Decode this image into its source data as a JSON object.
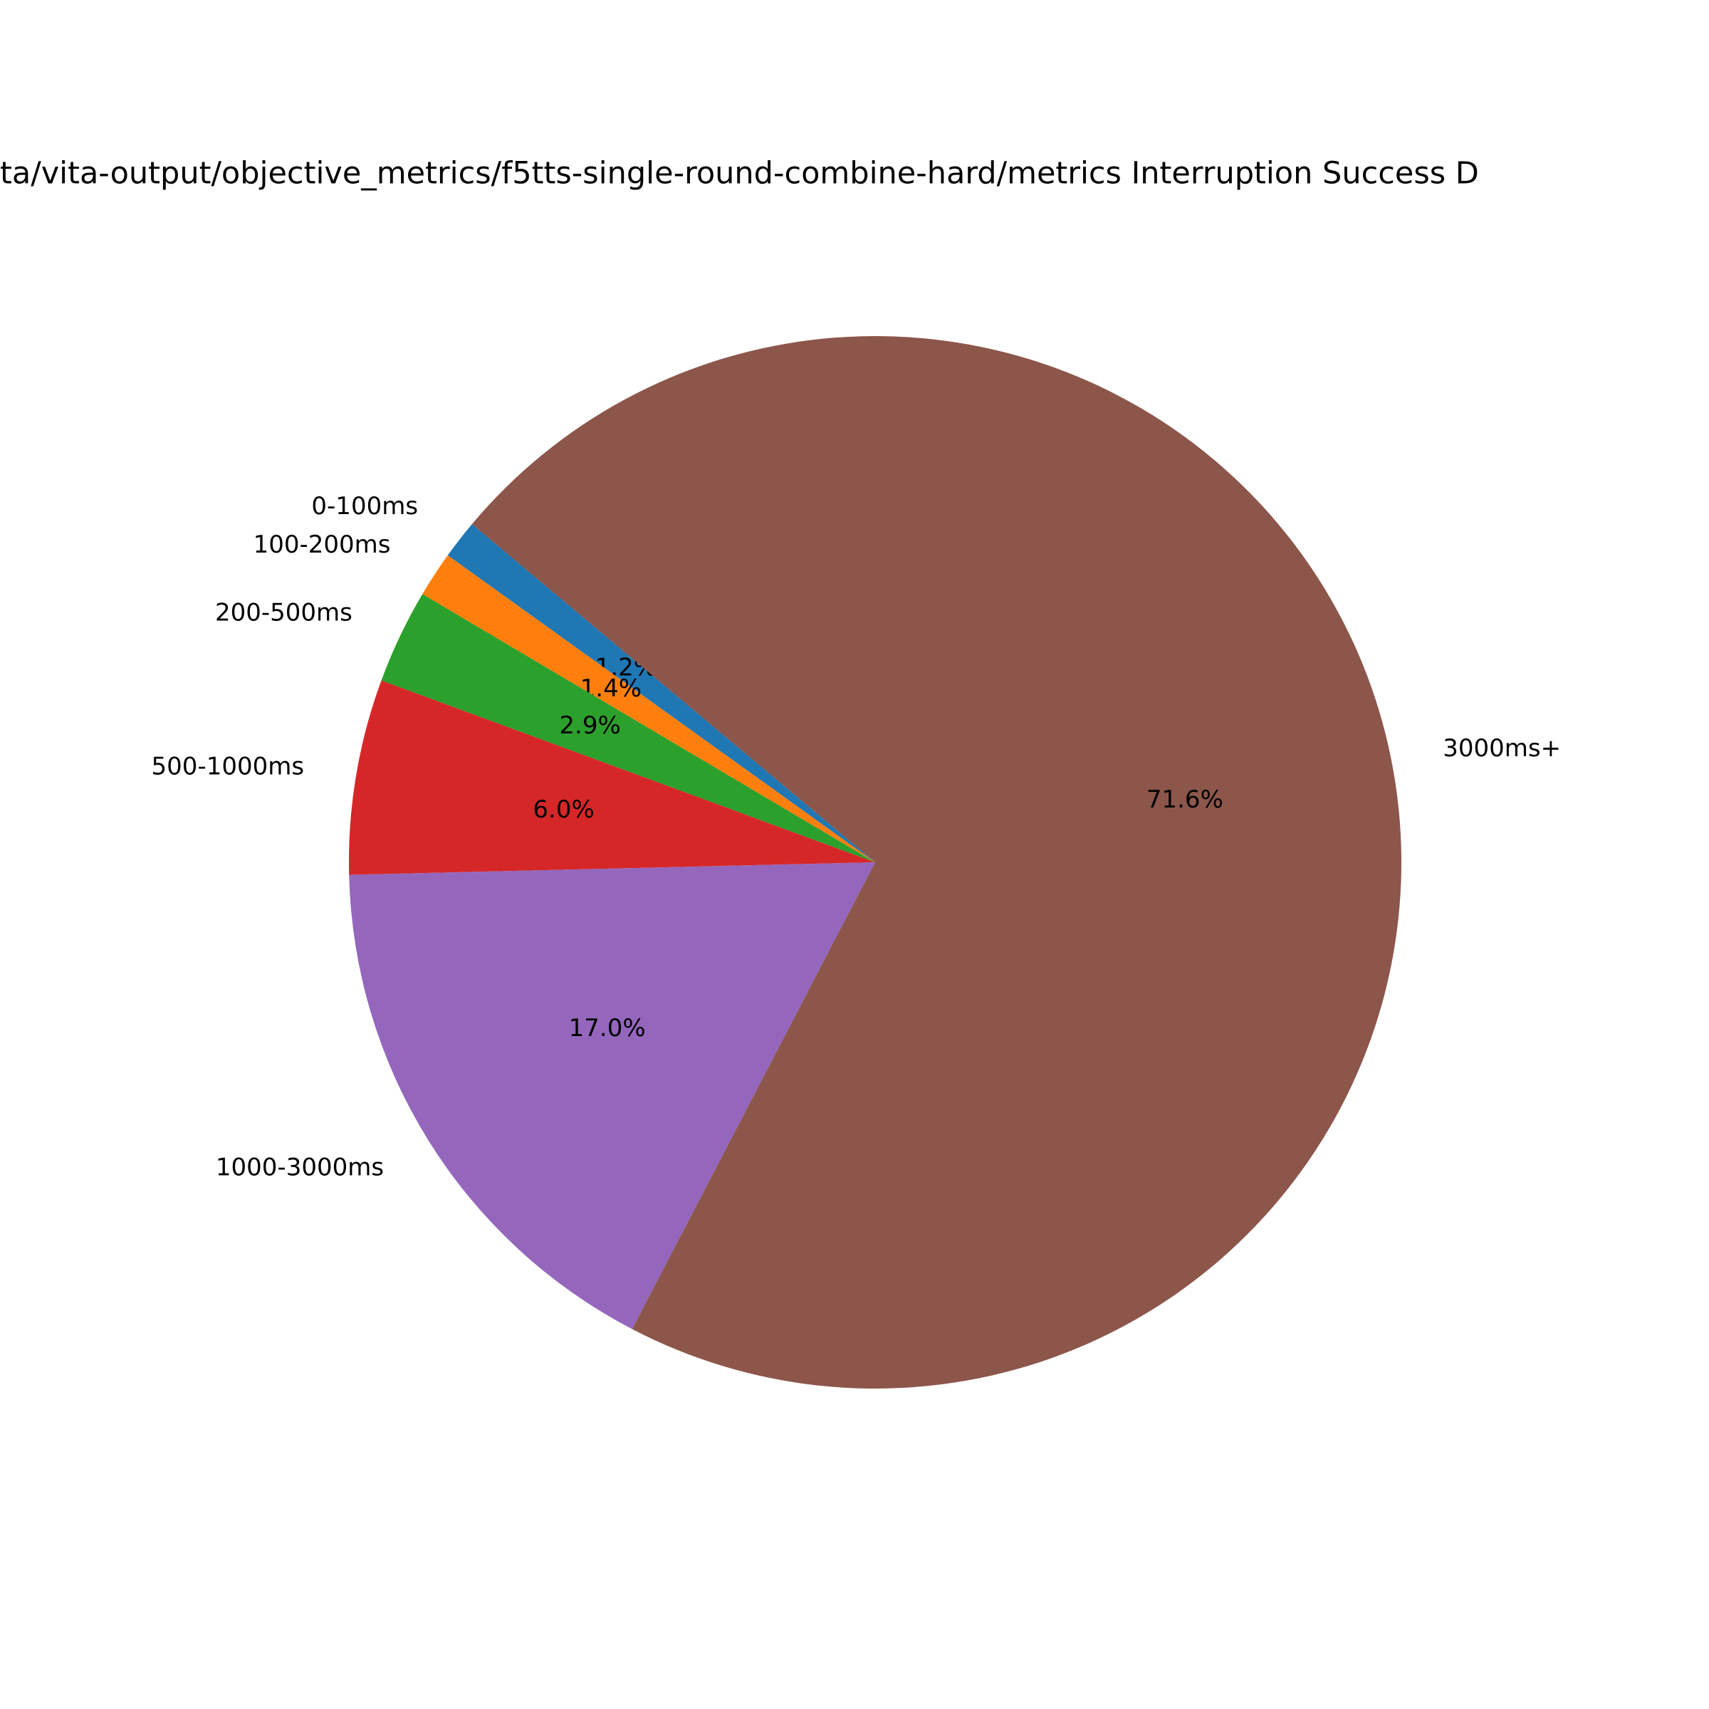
{
  "chart_data": {
    "type": "pie",
    "title": "ta/vita-output/objective_metrics/f5tts-single-round-combine-hard/metrics Interruption Success D",
    "categories": [
      "0-100ms",
      "100-200ms",
      "200-500ms",
      "500-1000ms",
      "1000-3000ms",
      "3000ms+"
    ],
    "values": [
      1.2,
      1.4,
      2.9,
      6.0,
      17.0,
      71.6
    ],
    "value_labels": [
      "1.2%",
      "1.4%",
      "2.9%",
      "6.0%",
      "17.0%",
      "71.6%"
    ],
    "colors": [
      "#1f77b4",
      "#ff7f0e",
      "#2ca02c",
      "#d62728",
      "#9467bd",
      "#8c564b"
    ]
  }
}
